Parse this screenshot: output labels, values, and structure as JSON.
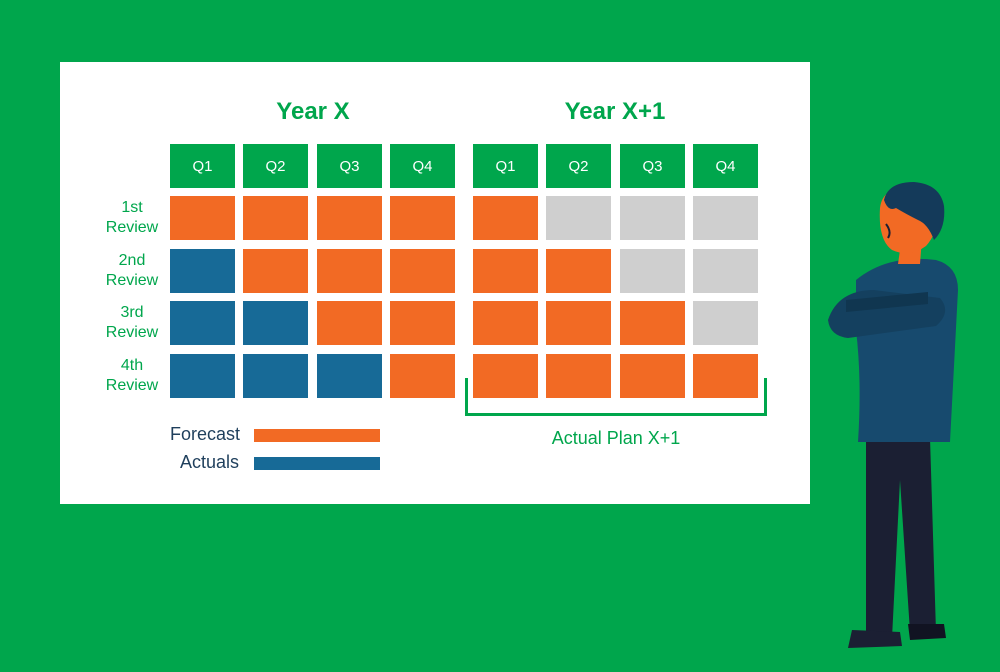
{
  "years": [
    "Year X",
    "Year X+1"
  ],
  "quarters": [
    "Q1",
    "Q2",
    "Q3",
    "Q4",
    "Q1",
    "Q2",
    "Q3",
    "Q4"
  ],
  "rows": [
    {
      "label": "1st\nReview",
      "cells": [
        "F",
        "F",
        "F",
        "F",
        "F",
        "E",
        "E",
        "E"
      ]
    },
    {
      "label": "2nd\nReview",
      "cells": [
        "A",
        "F",
        "F",
        "F",
        "F",
        "F",
        "E",
        "E"
      ]
    },
    {
      "label": "3rd\nReview",
      "cells": [
        "A",
        "A",
        "F",
        "F",
        "F",
        "F",
        "F",
        "E"
      ]
    },
    {
      "label": "4th\nReview",
      "cells": [
        "A",
        "A",
        "A",
        "F",
        "F",
        "F",
        "F",
        "F"
      ]
    }
  ],
  "legend": {
    "forecast": "Forecast",
    "actuals": "Actuals"
  },
  "plan_label": "Actual Plan X+1",
  "colors": {
    "background": "#00a64c",
    "forecast": "#f26a24",
    "actuals": "#176a97",
    "empty": "#cfcfcf",
    "header": "#00a64c"
  }
}
